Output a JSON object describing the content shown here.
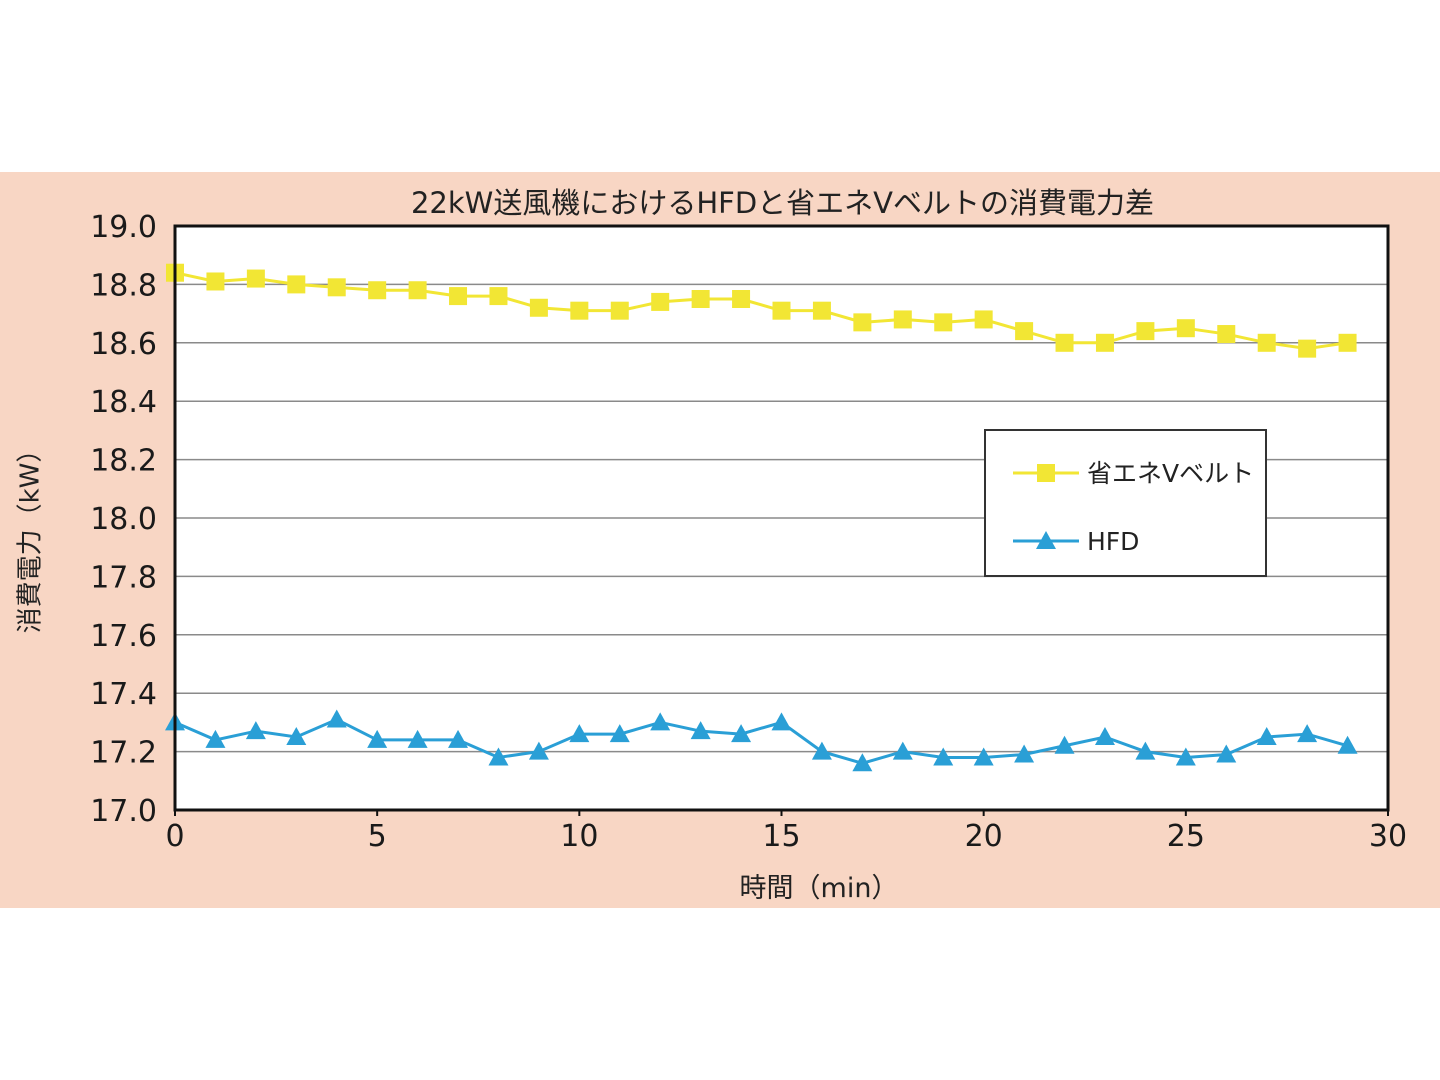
{
  "chart_data": {
    "type": "line",
    "title": "22kW送風機におけるHFDと省エネVベルトの消費電力差",
    "xlabel": "時間（min）",
    "ylabel": "消費電力（kW）",
    "xlim": [
      0,
      30
    ],
    "ylim": [
      17.0,
      19.0
    ],
    "x_ticks": [
      "0",
      "5",
      "10",
      "15",
      "20",
      "25",
      "30"
    ],
    "y_ticks": [
      "17.0",
      "17.2",
      "17.4",
      "17.6",
      "17.8",
      "18.0",
      "18.2",
      "18.4",
      "18.6",
      "18.8",
      "19.0"
    ],
    "grid": true,
    "legend_position": "right",
    "x": [
      0,
      1,
      2,
      3,
      4,
      5,
      6,
      7,
      8,
      9,
      10,
      11,
      12,
      13,
      14,
      15,
      16,
      17,
      18,
      19,
      20,
      21,
      22,
      23,
      24,
      25,
      26,
      27,
      28,
      29
    ],
    "series": [
      {
        "name": "省エネVベルト",
        "color": "#f2e634",
        "marker": "square",
        "values": [
          18.84,
          18.81,
          18.82,
          18.8,
          18.79,
          18.78,
          18.78,
          18.76,
          18.76,
          18.72,
          18.71,
          18.71,
          18.74,
          18.75,
          18.75,
          18.71,
          18.71,
          18.67,
          18.68,
          18.67,
          18.68,
          18.64,
          18.6,
          18.6,
          18.64,
          18.65,
          18.63,
          18.6,
          18.58,
          18.6
        ]
      },
      {
        "name": "HFD",
        "color": "#2a9fd6",
        "marker": "triangle",
        "values": [
          17.3,
          17.24,
          17.27,
          17.25,
          17.31,
          17.24,
          17.24,
          17.24,
          17.18,
          17.2,
          17.26,
          17.26,
          17.3,
          17.27,
          17.26,
          17.3,
          17.2,
          17.16,
          17.2,
          17.18,
          17.18,
          17.19,
          17.22,
          17.25,
          17.2,
          17.18,
          17.19,
          17.25,
          17.26,
          17.22
        ]
      }
    ]
  }
}
